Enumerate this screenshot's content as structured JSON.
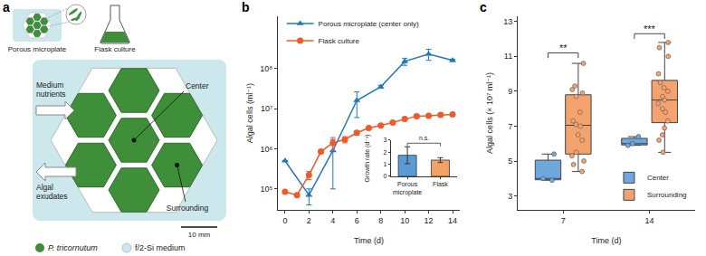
{
  "panel_a": {
    "panel_label": "a",
    "icons": [
      "Porous microplate",
      "Flask culture"
    ],
    "arrows": [
      "Medium nutrients",
      "Algal exudates"
    ],
    "wells": [
      "Center",
      "Surrounding"
    ],
    "scale_bar": "10 mm",
    "key": [
      {
        "label": "P. tricornutum",
        "color": "#3f8f3a"
      },
      {
        "label": "f/2-Si medium",
        "color": "#cde8ec"
      }
    ]
  },
  "chart_data": [
    {
      "panel_label": "b",
      "type": "line",
      "x_label": "Time (d)",
      "y_label": "Algal cells (ml⁻¹)",
      "log": "y",
      "legend": "top left",
      "xlim": [
        -0.6,
        14.6
      ],
      "xticks": [
        0,
        2,
        4,
        6,
        8,
        10,
        12,
        14
      ],
      "ylim": [
        30000,
        2000000000
      ],
      "yticks": [
        {
          "value": 100000,
          "label": "10⁵"
        },
        {
          "value": 1000000,
          "label": "10⁶"
        },
        {
          "value": 10000000,
          "label": "10⁷"
        },
        {
          "value": 100000000,
          "label": "10⁸"
        }
      ],
      "series": [
        {
          "name": "Porous microplate (center only)",
          "color": "#1f77c4",
          "marker": "triangle-up",
          "x": [
            0,
            2,
            4,
            6,
            8,
            10,
            12,
            14
          ],
          "values": [
            500000,
            70000,
            900000,
            16000000,
            35000000,
            150000000,
            230000000,
            160000000
          ],
          "errors": [
            0,
            30000,
            800000,
            10000000,
            3000000,
            30000000,
            70000000,
            10000000
          ]
        },
        {
          "name": "Flask culture",
          "color": "#f05a28",
          "marker": "circle",
          "x": [
            0,
            1,
            2,
            3,
            4,
            5,
            6,
            7,
            8,
            9,
            10,
            11,
            12,
            13,
            14
          ],
          "values": [
            85000,
            70000,
            220000,
            850000,
            1400000,
            1700000,
            2500000,
            3300000,
            3800000,
            4500000,
            5500000,
            6500000,
            6600000,
            7000000,
            7200000
          ],
          "errors": [
            5000,
            5000,
            50000,
            100000,
            500000,
            300000,
            300000,
            200000,
            200000,
            300000,
            300000,
            500000,
            300000,
            300000,
            300000
          ]
        }
      ],
      "inset": {
        "type": "bar",
        "y_label": "Growth rate (d⁻¹)",
        "categories": [
          "Porous microplate",
          "Flask"
        ],
        "values": [
          1.75,
          1.35
        ],
        "errors": [
          0.7,
          0.2
        ],
        "colors": [
          "#5b9bd5",
          "#f4a261"
        ],
        "ylim": [
          0,
          3
        ],
        "yticks": [
          0,
          1,
          2,
          3
        ],
        "annotations": [
          {
            "text": "n.s.",
            "x": [
              "Porous microplate",
              "Flask"
            ],
            "y": 2.75
          }
        ]
      }
    },
    {
      "panel_label": "c",
      "type": "box",
      "x_label": "Time (d)",
      "y_label": "Algal cells (× 10⁷ ml⁻¹)",
      "legend": "bottom right",
      "categories": [
        "7",
        "14"
      ],
      "ylim": [
        2.2,
        13.3
      ],
      "yticks": [
        3,
        5,
        7,
        9,
        11,
        13
      ],
      "series": [
        {
          "name": "Center",
          "color": "#6fa8dc",
          "values": [
            [
              3.9,
              4.0,
              5.4
            ],
            [
              5.9,
              6.0,
              6.4
            ]
          ]
        },
        {
          "name": "Surrounding",
          "color": "#f4a36f",
          "values": [
            [
              4.4,
              4.8,
              5.0,
              5.3,
              5.5,
              6.2,
              6.5,
              7.0,
              7.1,
              7.3,
              7.8,
              8.7,
              8.9,
              9.1,
              9.3,
              10.6
            ],
            [
              5.5,
              6.2,
              6.5,
              6.9,
              7.3,
              7.8,
              8.0,
              8.3,
              8.5,
              8.7,
              9.0,
              9.2,
              9.5,
              10.0,
              11.0,
              11.5,
              11.8
            ]
          ]
        }
      ],
      "annotations": [
        {
          "text": "**",
          "x": "7",
          "y": 11.2
        },
        {
          "text": "***",
          "x": "14",
          "y": 12.3
        }
      ]
    }
  ]
}
